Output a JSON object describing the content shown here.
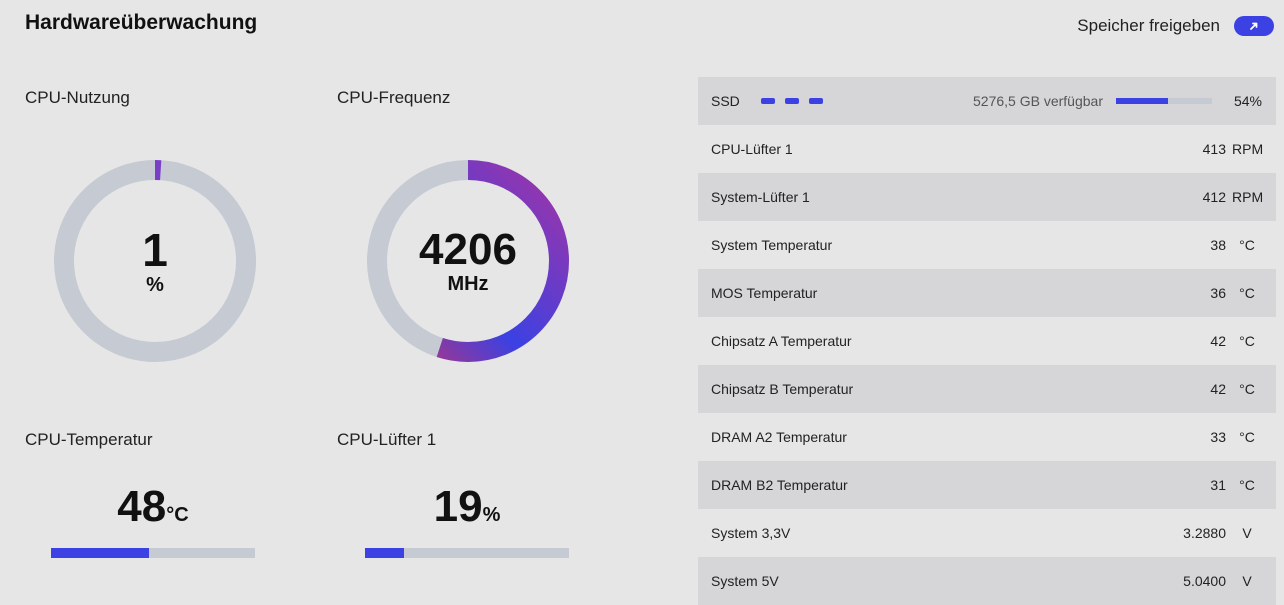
{
  "header": {
    "title": "Hardwareüberwachung",
    "release_label": "Speicher freigeben"
  },
  "colors": {
    "accent": "#3b41e3",
    "track": "#c5cad3",
    "gradient_start": "#c8336d",
    "gradient_end": "#3b41e3"
  },
  "gauges": {
    "cpu_usage": {
      "title": "CPU-Nutzung",
      "value": "1",
      "unit": "%",
      "fraction": 0.01
    },
    "cpu_freq": {
      "title": "CPU-Frequenz",
      "value": "4206",
      "unit": "MHz",
      "fraction": 0.55
    },
    "cpu_temp": {
      "title": "CPU-Temperatur",
      "value": "48",
      "unit": "°C",
      "fraction": 0.48
    },
    "cpu_fan": {
      "title": "CPU-Lüfter 1",
      "value": "19",
      "unit": "%",
      "fraction": 0.19
    }
  },
  "ssd": {
    "label": "SSD",
    "available": "5276,5 GB verfügbar",
    "percent": "54%",
    "fraction": 0.54
  },
  "sensors": [
    {
      "label": "CPU-Lüfter 1",
      "value": "413",
      "unit": "RPM"
    },
    {
      "label": "System-Lüfter 1",
      "value": "412",
      "unit": "RPM"
    },
    {
      "label": "System Temperatur",
      "value": "38",
      "unit": "°C"
    },
    {
      "label": "MOS Temperatur",
      "value": "36",
      "unit": "°C"
    },
    {
      "label": "Chipsatz A Temperatur",
      "value": "42",
      "unit": "°C"
    },
    {
      "label": "Chipsatz B Temperatur",
      "value": "42",
      "unit": "°C"
    },
    {
      "label": "DRAM A2 Temperatur",
      "value": "33",
      "unit": "°C"
    },
    {
      "label": "DRAM B2 Temperatur",
      "value": "31",
      "unit": "°C"
    },
    {
      "label": "System 3,3V",
      "value": "3.2880",
      "unit": "V"
    },
    {
      "label": "System 5V",
      "value": "5.0400",
      "unit": "V"
    }
  ]
}
